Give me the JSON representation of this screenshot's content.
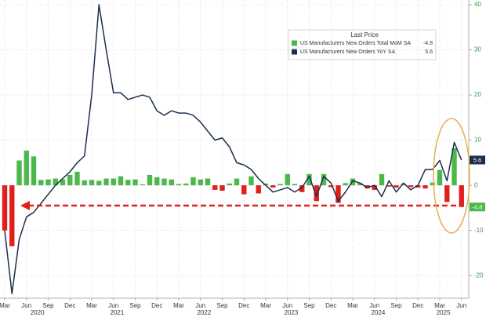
{
  "chart_data": {
    "type": "bar_line",
    "categories": [
      "2020-03",
      "2020-04",
      "2020-05",
      "2020-06",
      "2020-07",
      "2020-08",
      "2020-09",
      "2020-10",
      "2020-11",
      "2020-12",
      "2021-01",
      "2021-02",
      "2021-03",
      "2021-04",
      "2021-05",
      "2021-06",
      "2021-07",
      "2021-08",
      "2021-09",
      "2021-10",
      "2021-11",
      "2021-12",
      "2022-01",
      "2022-02",
      "2022-03",
      "2022-04",
      "2022-05",
      "2022-06",
      "2022-07",
      "2022-08",
      "2022-09",
      "2022-10",
      "2022-11",
      "2022-12",
      "2023-01",
      "2023-02",
      "2023-03",
      "2023-04",
      "2023-05",
      "2023-06",
      "2023-07",
      "2023-08",
      "2023-09",
      "2023-10",
      "2023-11",
      "2023-12",
      "2024-01",
      "2024-02",
      "2024-03",
      "2024-04",
      "2024-05",
      "2024-06",
      "2024-07",
      "2024-08",
      "2024-09",
      "2024-10",
      "2024-11",
      "2024-12",
      "2025-01",
      "2025-02",
      "2025-03",
      "2025-04",
      "2025-05",
      "2025-06"
    ],
    "legend_title": "Last Price",
    "series": [
      {
        "name": "US Manufacturers New Orders Total MoM SA",
        "type": "bar",
        "color": "#4cb84c",
        "negative_color": "#e0201c",
        "values": [
          -10,
          -13.5,
          5.5,
          7.7,
          6.4,
          1.2,
          1.3,
          1.5,
          1.3,
          2.3,
          3.0,
          1.1,
          1.2,
          1.0,
          1.5,
          1.5,
          2.0,
          1.2,
          1.3,
          0.2,
          2.3,
          1.8,
          1.5,
          1.3,
          0.3,
          0.4,
          1.8,
          1.3,
          1.5,
          -1.0,
          -1.2,
          0.4,
          1.5,
          -2.0,
          2.0,
          -1.8,
          0.4,
          -0.5,
          0.3,
          2.5,
          0.3,
          -1.5,
          2.5,
          -3.5,
          2.5,
          -0.4,
          -3.9,
          0.5,
          1.5,
          0.5,
          -0.7,
          -1.0,
          2.5,
          -0.3,
          -0.5,
          0.3,
          -0.4,
          -0.5,
          -0.7,
          0.6,
          3.4,
          -3.7,
          8.2,
          -4.8
        ]
      },
      {
        "name": "US Manufacturers New Orders YoY SA",
        "type": "line",
        "color": "#1c2e4a",
        "values": [
          -10,
          -24,
          -12,
          -7,
          -6,
          -4,
          -2,
          0,
          1.5,
          3,
          5,
          6.5,
          20,
          40,
          30,
          20.5,
          20.5,
          19,
          19.5,
          20,
          19.5,
          16.5,
          15.5,
          16.5,
          16,
          16,
          15.5,
          14,
          12,
          10,
          10.5,
          8.5,
          5,
          4.5,
          3.5,
          1.5,
          0,
          -1.5,
          -1,
          -0.5,
          -1.5,
          -0.5,
          2,
          -2.5,
          2,
          0.5,
          -3.5,
          -1.5,
          1,
          0.5,
          -0.5,
          0,
          -2.5,
          1,
          -1.5,
          0.5,
          -1,
          0,
          3.5,
          3.5,
          5.5,
          1,
          9.5,
          5.6
        ]
      }
    ],
    "ylim": [
      -25,
      40
    ],
    "yticks": [
      -20,
      -10,
      0,
      10,
      20,
      30,
      40
    ],
    "xticks": [
      {
        "value": "2020-03",
        "label": "Mar"
      },
      {
        "value": "2020-06",
        "label": "Jun"
      },
      {
        "value": "2020-09",
        "label": "Sep"
      },
      {
        "value": "2020-12",
        "label": "Dec"
      },
      {
        "value": "2021-03",
        "label": "Mar"
      },
      {
        "value": "2021-06",
        "label": "Jun"
      },
      {
        "value": "2021-09",
        "label": "Sep"
      },
      {
        "value": "2021-12",
        "label": "Dec"
      },
      {
        "value": "2022-03",
        "label": "Mar"
      },
      {
        "value": "2022-06",
        "label": "Jun"
      },
      {
        "value": "2022-09",
        "label": "Sep"
      },
      {
        "value": "2022-12",
        "label": "Dec"
      },
      {
        "value": "2023-03",
        "label": "Mar"
      },
      {
        "value": "2023-06",
        "label": "Jun"
      },
      {
        "value": "2023-09",
        "label": "Sep"
      },
      {
        "value": "2023-12",
        "label": "Dec"
      },
      {
        "value": "2024-03",
        "label": "Mar"
      },
      {
        "value": "2024-06",
        "label": "Jun"
      },
      {
        "value": "2024-09",
        "label": "Sep"
      },
      {
        "value": "2024-12",
        "label": "Dec"
      },
      {
        "value": "2025-03",
        "label": "Mar"
      },
      {
        "value": "2025-06",
        "label": "Jun"
      }
    ],
    "year_labels": [
      "2020",
      "2021",
      "2022",
      "2023",
      "2024",
      "2025"
    ],
    "grid": true,
    "legend_position": "top-right"
  }
}
